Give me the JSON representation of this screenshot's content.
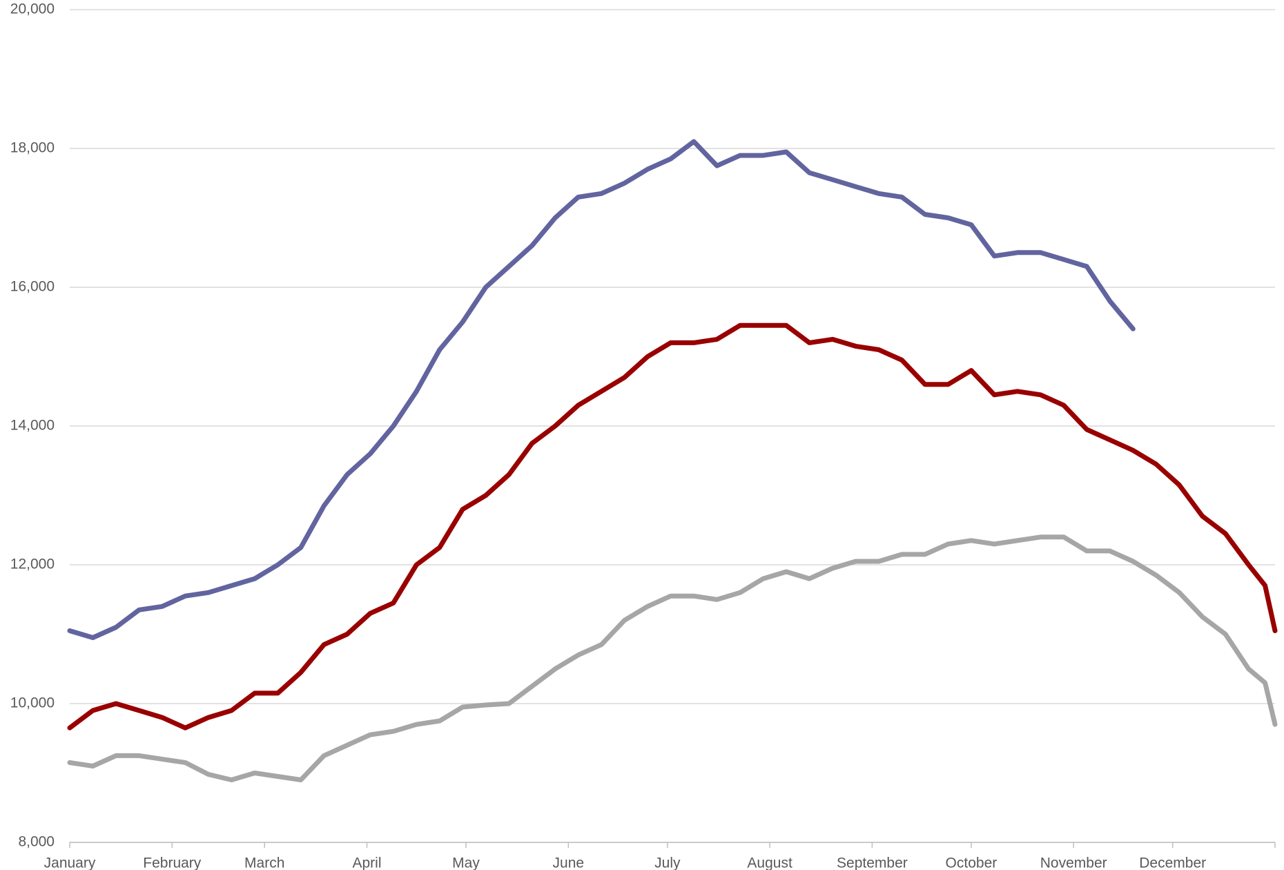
{
  "chart_data": {
    "type": "line",
    "x": [
      0,
      7,
      14,
      21,
      28,
      35,
      42,
      49,
      56,
      63,
      70,
      77,
      84,
      91,
      98,
      105,
      112,
      119,
      126,
      133,
      140,
      147,
      154,
      161,
      168,
      175,
      182,
      189,
      196,
      203,
      210,
      217,
      224,
      231,
      238,
      245,
      252,
      259,
      266,
      273,
      280,
      287,
      294,
      301,
      308,
      315,
      322,
      329,
      336,
      343,
      350,
      357,
      362,
      365
    ],
    "xlim": [
      0,
      365
    ],
    "xticks": [
      {
        "value": 0,
        "label": "January"
      },
      {
        "value": 31,
        "label": "February"
      },
      {
        "value": 59,
        "label": "March"
      },
      {
        "value": 90,
        "label": "April"
      },
      {
        "value": 120,
        "label": "May"
      },
      {
        "value": 151,
        "label": "June"
      },
      {
        "value": 181,
        "label": "July"
      },
      {
        "value": 212,
        "label": "August"
      },
      {
        "value": 243,
        "label": "September"
      },
      {
        "value": 273,
        "label": "October"
      },
      {
        "value": 304,
        "label": "November"
      },
      {
        "value": 334,
        "label": "December"
      },
      {
        "value": 365,
        "label": ""
      }
    ],
    "ylim": [
      8000,
      20000
    ],
    "yticks": [
      {
        "value": 8000,
        "label": "8,000"
      },
      {
        "value": 10000,
        "label": "10,000"
      },
      {
        "value": 12000,
        "label": "12,000"
      },
      {
        "value": 14000,
        "label": "14,000"
      },
      {
        "value": 16000,
        "label": "16,000"
      },
      {
        "value": 18000,
        "label": "18,000"
      },
      {
        "value": 20000,
        "label": "20,000"
      }
    ],
    "grid": true,
    "series": [
      {
        "color": "#62649f",
        "values": [
          11050,
          10950,
          11100,
          11350,
          11400,
          11550,
          11600,
          11700,
          11800,
          12000,
          12250,
          12850,
          13300,
          13600,
          14000,
          14500,
          15100,
          15500,
          16000,
          16300,
          16600,
          17000,
          17300,
          17350,
          17500,
          17700,
          17850,
          18100,
          17750,
          17900,
          17900,
          17950,
          17650,
          17550,
          17450,
          17350,
          17300,
          17050,
          17000,
          16900,
          16450,
          16500,
          16500,
          16400,
          16300,
          15800,
          15400,
          null,
          null,
          null,
          null,
          null,
          null,
          null
        ]
      },
      {
        "color": "#990000",
        "values": [
          9650,
          9900,
          10000,
          9900,
          9800,
          9650,
          9800,
          9900,
          10150,
          10150,
          10450,
          10850,
          11000,
          11300,
          11450,
          12000,
          12250,
          12800,
          13000,
          13300,
          13750,
          14000,
          14300,
          14500,
          14700,
          15000,
          15200,
          15200,
          15250,
          15450,
          15450,
          15450,
          15200,
          15250,
          15150,
          15100,
          14950,
          14600,
          14600,
          14800,
          14450,
          14500,
          14450,
          14300,
          13950,
          13800,
          13650,
          13450,
          13150,
          12700,
          12450,
          12000,
          11700,
          11050
        ]
      },
      {
        "color": "#a6a6a6",
        "values": [
          9150,
          9100,
          9250,
          9250,
          9200,
          9150,
          8980,
          8900,
          9000,
          8950,
          8900,
          9250,
          9400,
          9550,
          9600,
          9700,
          9750,
          9950,
          9980,
          10000,
          10250,
          10500,
          10700,
          10850,
          11200,
          11400,
          11550,
          11550,
          11500,
          11600,
          11800,
          11900,
          11800,
          11950,
          12050,
          12050,
          12150,
          12150,
          12300,
          12350,
          12300,
          12350,
          12400,
          12400,
          12200,
          12200,
          12050,
          11850,
          11600,
          11250,
          11000,
          10500,
          10300,
          9700
        ]
      }
    ]
  }
}
